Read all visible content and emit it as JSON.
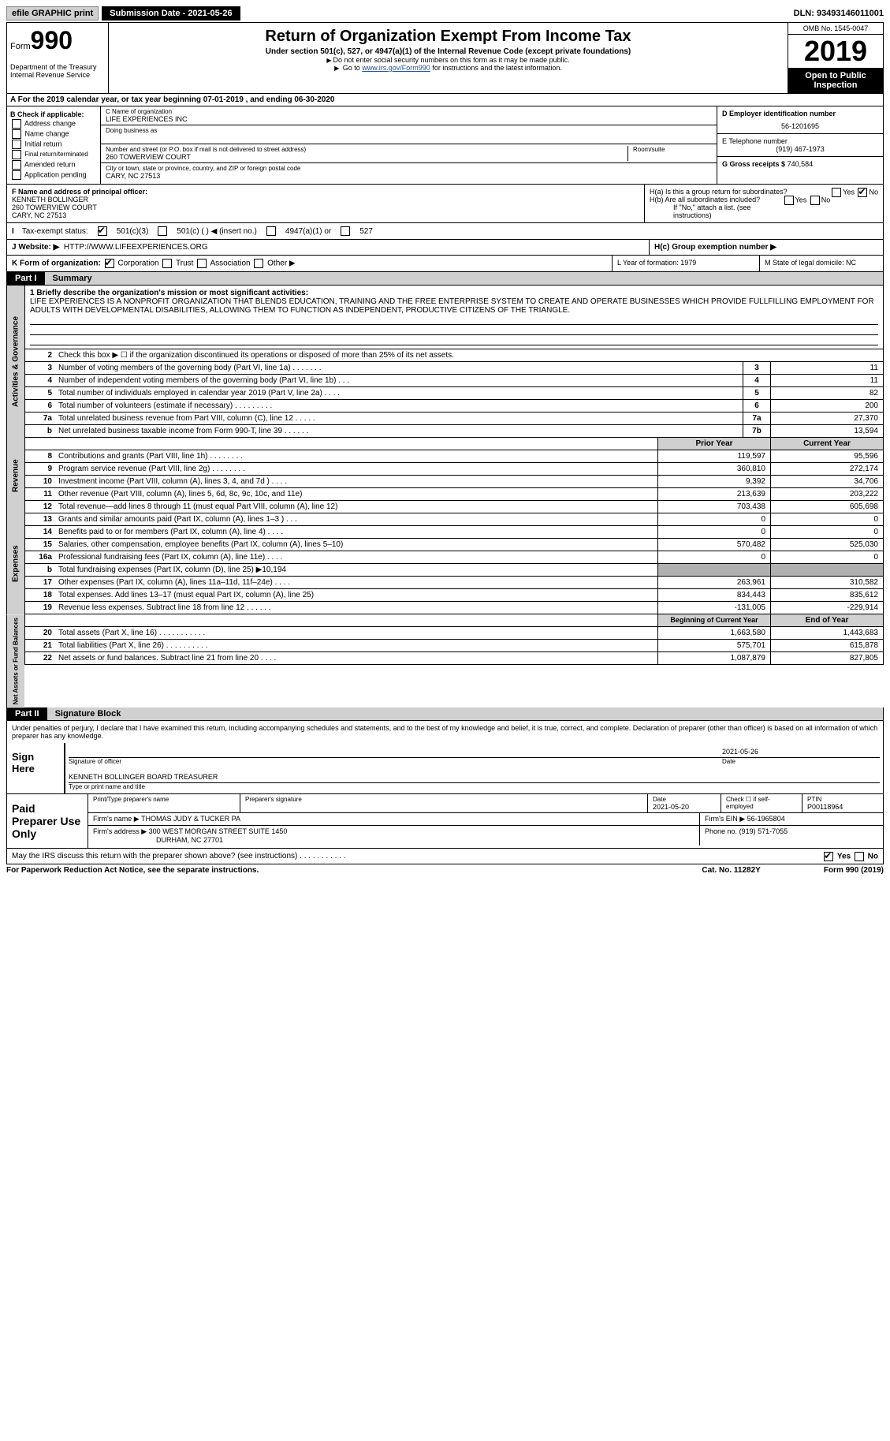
{
  "topbar": {
    "efile": "efile GRAPHIC print",
    "submission": "Submission Date - 2021-05-26",
    "dln": "DLN: 93493146011001"
  },
  "header": {
    "form_label": "Form",
    "form_number": "990",
    "title": "Return of Organization Exempt From Income Tax",
    "subtitle": "Under section 501(c), 527, or 4947(a)(1) of the Internal Revenue Code (except private foundations)",
    "note1": "Do not enter social security numbers on this form as it may be made public.",
    "note2": "Go to",
    "note2_link": "www.irs.gov/Form990",
    "note2_after": "for instructions and the latest information.",
    "dept": "Department of the Treasury\nInternal Revenue Service",
    "omb": "OMB No. 1545-0047",
    "year": "2019",
    "open": "Open to Public Inspection"
  },
  "rowA": "For the 2019 calendar year, or tax year beginning 07-01-2019     , and ending 06-30-2020",
  "colB": {
    "title": "B Check if applicable:",
    "opts": [
      "Address change",
      "Name change",
      "Initial return",
      "Final return/terminated",
      "Amended return",
      "Application pending"
    ]
  },
  "colC": {
    "name_label": "C Name of organization",
    "name": "LIFE EXPERIENCES INC",
    "dba_label": "Doing business as",
    "street_label": "Number and street (or P.O. box if mail is not delivered to street address)",
    "room_label": "Room/suite",
    "street": "260 TOWERVIEW COURT",
    "city_label": "City or town, state or province, country, and ZIP or foreign postal code",
    "city": "CARY, NC  27513"
  },
  "colD": {
    "ein_label": "D Employer identification number",
    "ein": "56-1201695",
    "phone_label": "E Telephone number",
    "phone": "(919) 467-1973",
    "gross_label": "G Gross receipts $",
    "gross": "740,584"
  },
  "officer": {
    "label": "F Name and address of principal officer:",
    "name": "KENNETH BOLLINGER",
    "street": "260 TOWERVIEW COURT",
    "city": "CARY, NC  27513",
    "ha": "H(a)  Is this a group return for subordinates?",
    "hb": "H(b)  Are all subordinates included?",
    "hb_note": "If \"No,\" attach a list. (see instructions)"
  },
  "taxstatus": {
    "label": "Tax-exempt status:",
    "o1": "501(c)(3)",
    "o2": "501(c) (   ) ◀ (insert no.)",
    "o3": "4947(a)(1) or",
    "o4": "527"
  },
  "website": {
    "label": "J    Website: ▶",
    "url": "HTTP://WWW.LIFEEXPERIENCES.ORG",
    "hc": "H(c)  Group exemption number ▶"
  },
  "korg": {
    "label": "K Form of organization:",
    "opts": [
      "Corporation",
      "Trust",
      "Association",
      "Other ▶"
    ],
    "l": "L Year of formation: 1979",
    "m": "M State of legal domicile: NC"
  },
  "part1": {
    "header": "Part I",
    "title": "Summary",
    "sections": {
      "governance": "Activities & Governance",
      "revenue": "Revenue",
      "expenses": "Expenses",
      "netassets": "Net Assets or Fund Balances"
    },
    "mission_label": "1   Briefly describe the organization's mission or most significant activities:",
    "mission": "LIFE EXPERIENCES IS A NONPROFIT ORGANIZATION THAT BLENDS EDUCATION, TRAINING AND THE FREE ENTERPRISE SYSTEM TO CREATE AND OPERATE BUSINESSES WHICH PROVIDE FULLFILLING EMPLOYMENT FOR ADULTS WITH DEVELOPMENTAL DISABILITIES, ALLOWING THEM TO FUNCTION AS INDEPENDENT, PRODUCTIVE CITIZENS OF THE TRIANGLE.",
    "line2": "Check this box ▶ ☐  if the organization discontinued its operations or disposed of more than 25% of its net assets.",
    "lines_gov": [
      {
        "n": "3",
        "d": "Number of voting members of the governing body (Part VI, line 1a)   .   .   .   .   .   .   .",
        "c": "3",
        "v": "11"
      },
      {
        "n": "4",
        "d": "Number of independent voting members of the governing body (Part VI, line 1b)   .   .   .",
        "c": "4",
        "v": "11"
      },
      {
        "n": "5",
        "d": "Total number of individuals employed in calendar year 2019 (Part V, line 2a)   .   .   .   .",
        "c": "5",
        "v": "82"
      },
      {
        "n": "6",
        "d": "Total number of volunteers (estimate if necessary)   .   .   .   .   .   .   .   .   .",
        "c": "6",
        "v": "200"
      },
      {
        "n": "7a",
        "d": "Total unrelated business revenue from Part VIII, column (C), line 12   .   .   .   .   .",
        "c": "7a",
        "v": "27,370"
      },
      {
        "n": "b",
        "d": "Net unrelated business taxable income from Form 990-T, line 39    .   .   .   .   .   .",
        "c": "7b",
        "v": "13,594"
      }
    ],
    "col_headers": {
      "prior": "Prior Year",
      "current": "Current Year"
    },
    "lines_rev": [
      {
        "n": "8",
        "d": "Contributions and grants (Part VIII, line 1h)   .   .   .   .   .   .   .   .",
        "p": "119,597",
        "c": "95,596"
      },
      {
        "n": "9",
        "d": "Program service revenue (Part VIII, line 2g)   .   .   .   .   .   .   .   .",
        "p": "360,810",
        "c": "272,174"
      },
      {
        "n": "10",
        "d": "Investment income (Part VIII, column (A), lines 3, 4, and 7d )   .   .   .   .",
        "p": "9,392",
        "c": "34,706"
      },
      {
        "n": "11",
        "d": "Other revenue (Part VIII, column (A), lines 5, 6d, 8c, 9c, 10c, and 11e)",
        "p": "213,639",
        "c": "203,222"
      },
      {
        "n": "12",
        "d": "Total revenue—add lines 8 through 11 (must equal Part VIII, column (A), line 12)",
        "p": "703,438",
        "c": "605,698"
      }
    ],
    "lines_exp": [
      {
        "n": "13",
        "d": "Grants and similar amounts paid (Part IX, column (A), lines 1–3 )  .   .   .",
        "p": "0",
        "c": "0"
      },
      {
        "n": "14",
        "d": "Benefits paid to or for members (Part IX, column (A), line 4)  .   .   .   .",
        "p": "0",
        "c": "0"
      },
      {
        "n": "15",
        "d": "Salaries, other compensation, employee benefits (Part IX, column (A), lines 5–10)",
        "p": "570,482",
        "c": "525,030"
      },
      {
        "n": "16a",
        "d": "Professional fundraising fees (Part IX, column (A), line 11e)   .   .   .   .",
        "p": "0",
        "c": "0"
      },
      {
        "n": "b",
        "d": "Total fundraising expenses (Part IX, column (D), line 25) ▶10,194",
        "p": "",
        "c": "",
        "shade": true
      },
      {
        "n": "17",
        "d": "Other expenses (Part IX, column (A), lines 11a–11d, 11f–24e)   .   .   .   .",
        "p": "263,961",
        "c": "310,582"
      },
      {
        "n": "18",
        "d": "Total expenses. Add lines 13–17 (must equal Part IX, column (A), line 25)",
        "p": "834,443",
        "c": "835,612"
      },
      {
        "n": "19",
        "d": "Revenue less expenses. Subtract line 18 from line 12   .   .   .   .   .   .",
        "p": "-131,005",
        "c": "-229,914"
      }
    ],
    "na_headers": {
      "begin": "Beginning of Current Year",
      "end": "End of Year"
    },
    "lines_na": [
      {
        "n": "20",
        "d": "Total assets (Part X, line 16)  .   .   .   .   .   .   .   .   .   .   .",
        "p": "1,663,580",
        "c": "1,443,683"
      },
      {
        "n": "21",
        "d": "Total liabilities (Part X, line 26)  .   .   .   .   .   .   .   .   .   .",
        "p": "575,701",
        "c": "615,878"
      },
      {
        "n": "22",
        "d": "Net assets or fund balances. Subtract line 21 from line 20   .   .   .   .",
        "p": "1,087,879",
        "c": "827,805"
      }
    ]
  },
  "part2": {
    "header": "Part II",
    "title": "Signature Block",
    "intro": "Under penalties of perjury, I declare that I have examined this return, including accompanying schedules and statements, and to the best of my knowledge and belief, it is true, correct, and complete. Declaration of preparer (other than officer) is based on all information of which preparer has any knowledge.",
    "sign_here": "Sign Here",
    "sig_date": "2021-05-26",
    "sig_officer": "Signature of officer",
    "date_label": "Date",
    "name_title": "KENNETH BOLLINGER  BOARD TREASURER",
    "name_title_label": "Type or print name and title",
    "paid": "Paid Preparer Use Only",
    "prep_header": {
      "name": "Print/Type preparer's name",
      "sig": "Preparer's signature",
      "date": "Date",
      "date_val": "2021-05-20",
      "check": "Check ☐ if self-employed",
      "ptin": "PTIN",
      "ptin_val": "P00118964"
    },
    "firm_name_label": "Firm's name    ▶",
    "firm_name": "THOMAS JUDY & TUCKER PA",
    "firm_ein_label": "Firm's EIN ▶",
    "firm_ein": "56-1965804",
    "firm_addr_label": "Firm's address ▶",
    "firm_addr": "300 WEST MORGAN STREET SUITE 1450",
    "firm_city": "DURHAM, NC  27701",
    "phone_label": "Phone no.",
    "phone": "(919) 571-7055",
    "discuss": "May the IRS discuss this return with the preparer shown above? (see instructions)   .   .   .   .   .   .   .   .   .   .   ."
  },
  "footer": {
    "left": "For Paperwork Reduction Act Notice, see the separate instructions.",
    "mid": "Cat. No. 11282Y",
    "right": "Form 990 (2019)"
  }
}
